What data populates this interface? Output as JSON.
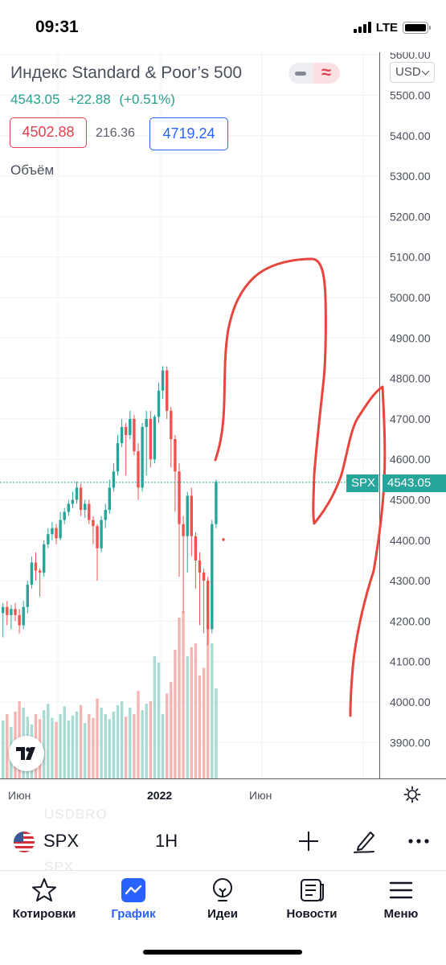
{
  "status_bar": {
    "time": "09:31",
    "network": "LTE"
  },
  "legend": {
    "title": "Индекс Standard & Poor’s 500",
    "price": "4543.05",
    "change": "+22.88",
    "change_pct": "(+0.51%)",
    "low": "4502.88",
    "range": "216.36",
    "high": "4719.24",
    "volume_label": "Объём",
    "currency": "USD"
  },
  "price_axis": {
    "labels": [
      "5600.00",
      "5500.00",
      "5400.00",
      "5300.00",
      "5200.00",
      "5100.00",
      "5000.00",
      "4900.00",
      "4800.00",
      "4700.00",
      "4600.00",
      "4500.00",
      "4400.00",
      "4300.00",
      "4200.00",
      "4100.00",
      "4000.00",
      "3900.00"
    ],
    "current_symbol": "SPX",
    "current_price": "4543.05"
  },
  "time_axis": {
    "labels": [
      "Июн",
      "2022",
      "Июн"
    ]
  },
  "toolbar": {
    "symbol": "SPX",
    "interval": "1H"
  },
  "watermark": {
    "top": "USDBRO",
    "bottom": "SPX"
  },
  "nav": [
    {
      "label": "Котировки",
      "icon": "star-icon"
    },
    {
      "label": "График",
      "icon": "chart-icon",
      "active": true
    },
    {
      "label": "Идеи",
      "icon": "lightbulb-icon"
    },
    {
      "label": "Новости",
      "icon": "news-icon"
    },
    {
      "label": "Меню",
      "icon": "menu-icon"
    }
  ],
  "colors": {
    "up": "#26a69a",
    "down": "#ef5350",
    "accent": "#2962ff",
    "annotation": "#e8453c"
  },
  "chart_data": {
    "type": "candlestick",
    "ylim": [
      3820,
      5620
    ],
    "last_price": 4543.05,
    "candles": [
      [
        4220,
        4235,
        4160,
        4245
      ],
      [
        4235,
        4215,
        4190,
        4250
      ],
      [
        4215,
        4230,
        4180,
        4240
      ],
      [
        4230,
        4215,
        4200,
        4245
      ],
      [
        4215,
        4190,
        4170,
        4230
      ],
      [
        4190,
        4235,
        4180,
        4250
      ],
      [
        4235,
        4290,
        4220,
        4300
      ],
      [
        4290,
        4345,
        4280,
        4360
      ],
      [
        4345,
        4325,
        4300,
        4370
      ],
      [
        4325,
        4320,
        4260,
        4330
      ],
      [
        4320,
        4390,
        4310,
        4400
      ],
      [
        4390,
        4415,
        4380,
        4430
      ],
      [
        4415,
        4430,
        4400,
        4445
      ],
      [
        4430,
        4405,
        4390,
        4440
      ],
      [
        4405,
        4450,
        4400,
        4470
      ],
      [
        4450,
        4470,
        4440,
        4480
      ],
      [
        4470,
        4490,
        4460,
        4500
      ],
      [
        4490,
        4500,
        4480,
        4520
      ],
      [
        4500,
        4530,
        4490,
        4545
      ],
      [
        4530,
        4475,
        4460,
        4540
      ],
      [
        4475,
        4490,
        4455,
        4500
      ],
      [
        4490,
        4450,
        4440,
        4500
      ],
      [
        4450,
        4435,
        4390,
        4460
      ],
      [
        4435,
        4380,
        4300,
        4440
      ],
      [
        4380,
        4450,
        4370,
        4460
      ],
      [
        4450,
        4475,
        4430,
        4490
      ],
      [
        4475,
        4530,
        4465,
        4550
      ],
      [
        4530,
        4570,
        4520,
        4590
      ],
      [
        4570,
        4640,
        4560,
        4660
      ],
      [
        4640,
        4680,
        4630,
        4700
      ],
      [
        4680,
        4660,
        4560,
        4690
      ],
      [
        4660,
        4700,
        4650,
        4720
      ],
      [
        4700,
        4620,
        4610,
        4710
      ],
      [
        4620,
        4530,
        4500,
        4640
      ],
      [
        4530,
        4680,
        4520,
        4690
      ],
      [
        4680,
        4700,
        4560,
        4720
      ],
      [
        4700,
        4600,
        4580,
        4720
      ],
      [
        4600,
        4705,
        4590,
        4710
      ],
      [
        4705,
        4770,
        4690,
        4790
      ],
      [
        4770,
        4820,
        4750,
        4830
      ],
      [
        4820,
        4720,
        4700,
        4830
      ],
      [
        4720,
        4650,
        4580,
        4730
      ],
      [
        4650,
        4570,
        4470,
        4660
      ],
      [
        4570,
        4440,
        4310,
        4590
      ],
      [
        4440,
        4410,
        4220,
        4460
      ],
      [
        4410,
        4510,
        4320,
        4520
      ],
      [
        4510,
        4410,
        4360,
        4530
      ],
      [
        4410,
        4350,
        4280,
        4420
      ],
      [
        4350,
        4320,
        4190,
        4370
      ],
      [
        4320,
        4300,
        4170,
        4330
      ],
      [
        4300,
        4180,
        4140,
        4310
      ],
      [
        4180,
        4440,
        4170,
        4450
      ],
      [
        4440,
        4545,
        4430,
        4550
      ]
    ],
    "volumes": [
      0.45,
      0.5,
      0.4,
      0.52,
      0.6,
      0.55,
      0.48,
      0.42,
      0.5,
      0.46,
      0.53,
      0.58,
      0.47,
      0.44,
      0.5,
      0.56,
      0.45,
      0.49,
      0.52,
      0.57,
      0.43,
      0.5,
      0.47,
      0.62,
      0.55,
      0.5,
      0.46,
      0.52,
      0.57,
      0.6,
      0.48,
      0.55,
      0.5,
      0.68,
      0.53,
      0.58,
      0.6,
      0.95,
      0.9,
      0.5,
      0.66,
      0.75,
      1.0,
      1.25,
      1.3,
      0.95,
      1.02,
      1.05,
      0.8,
      0.86,
      1.27,
      1.05,
      0.7
    ]
  }
}
